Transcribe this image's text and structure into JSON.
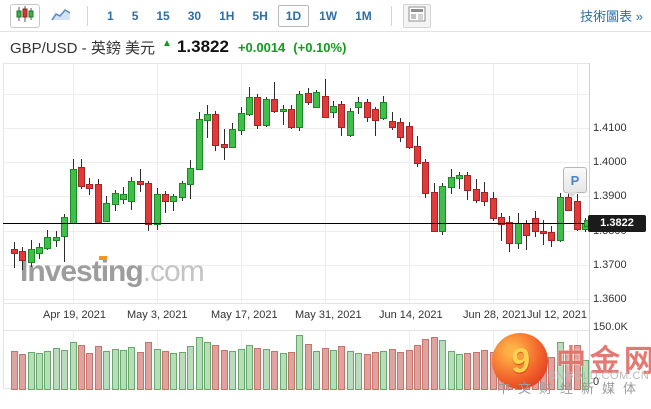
{
  "toolbar": {
    "chart_types": [
      {
        "id": "candlestick",
        "icon": "candlestick-icon",
        "selected": true
      },
      {
        "id": "line",
        "icon": "line-chart-icon",
        "selected": false
      }
    ],
    "timeframes": [
      "1",
      "5",
      "15",
      "30",
      "1H",
      "5H",
      "1D",
      "1W",
      "1M"
    ],
    "selected_timeframe": "1D",
    "news_button_icon": "news-icon",
    "tech_chart_link": "技術圖表 »"
  },
  "header": {
    "symbol": "GBP/USD",
    "separator": " - ",
    "name": "英鎊 美元",
    "up_arrow": "▲",
    "price": "1.3822",
    "change": "+0.0014",
    "change_pct": "(+0.10%)"
  },
  "colors": {
    "up_fill": "#3fbf4a",
    "up_border": "#1b8a24",
    "down_fill": "#e23a3a",
    "down_border": "#a32626",
    "wick": "#2b2b2b",
    "vol_up_fill": "#b9dcba",
    "vol_up_border": "#67a96a",
    "vol_down_fill": "#e0a29d",
    "vol_down_border": "#c4736d",
    "link_blue": "#2e6ea6",
    "change_green": "#0f9d1a",
    "price_tag_bg": "#1b1b1b"
  },
  "chart_data": {
    "type": "candlestick",
    "instrument": "GBP/USD",
    "interval": "1D",
    "ylim": [
      1.359,
      1.429
    ],
    "grid": true,
    "last_price": 1.3822,
    "last_price_label": "1.3822",
    "marker_flag": "P",
    "y_grid": [
      1.42,
      1.41,
      1.4,
      1.39,
      1.38,
      1.37,
      1.36
    ],
    "y_ticks": [
      {
        "value": 1.41,
        "label": "1.4100"
      },
      {
        "value": 1.4,
        "label": "1.4000"
      },
      {
        "value": 1.39,
        "label": "1.3900"
      },
      {
        "value": 1.38,
        "label": "1.3800"
      },
      {
        "value": 1.37,
        "label": "1.3700"
      },
      {
        "value": 1.36,
        "label": "1.3600"
      }
    ],
    "x_labels": [
      {
        "label": "Apr 19, 2021",
        "index": 7
      },
      {
        "label": "May 3, 2021",
        "index": 17
      },
      {
        "label": "May 17, 2021",
        "index": 27
      },
      {
        "label": "May 31, 2021",
        "index": 37
      },
      {
        "label": "Jun 14, 2021",
        "index": 47
      },
      {
        "label": "Jun 28, 2021",
        "index": 57
      },
      {
        "label": "Jul 12, 2021",
        "index": 67
      }
    ],
    "volume_axis": {
      "top_label": "150.0K",
      "zero_label": "0",
      "max_k": 150
    },
    "candles": [
      [
        "Apr 8",
        1.3746,
        1.3768,
        1.3692,
        1.3736,
        95
      ],
      [
        "Apr 9",
        1.374,
        1.3752,
        1.3686,
        1.3716,
        88
      ],
      [
        "Apr 12",
        1.371,
        1.3772,
        1.3694,
        1.3746,
        92
      ],
      [
        "Apr 13",
        1.3738,
        1.3765,
        1.3718,
        1.3752,
        90
      ],
      [
        "Apr 14",
        1.3752,
        1.3802,
        1.3744,
        1.3781,
        96
      ],
      [
        "Apr 15",
        1.3776,
        1.3798,
        1.3752,
        1.3782,
        104
      ],
      [
        "Apr 16",
        1.3787,
        1.3848,
        1.3708,
        1.384,
        98
      ],
      [
        "Apr 19",
        1.3826,
        1.4009,
        1.3822,
        1.398,
        120
      ],
      [
        "Apr 20",
        1.3987,
        1.401,
        1.3923,
        1.3932,
        112
      ],
      [
        "Apr 21",
        1.3936,
        1.3953,
        1.3905,
        1.3926,
        90
      ],
      [
        "Apr 22",
        1.3936,
        1.395,
        1.3818,
        1.3828,
        108
      ],
      [
        "Apr 23",
        1.383,
        1.3902,
        1.3824,
        1.388,
        95
      ],
      [
        "Apr 26",
        1.388,
        1.392,
        1.3858,
        1.391,
        102
      ],
      [
        "Apr 27",
        1.3896,
        1.3928,
        1.3878,
        1.3908,
        98
      ],
      [
        "Apr 28",
        1.389,
        1.3956,
        1.386,
        1.3946,
        105
      ],
      [
        "Apr 29",
        1.3946,
        1.398,
        1.3912,
        1.3938,
        92
      ],
      [
        "Apr 30",
        1.3938,
        1.3946,
        1.38,
        1.3822,
        118
      ],
      [
        "May 3",
        1.3822,
        1.3926,
        1.3802,
        1.3908,
        100
      ],
      [
        "May 4",
        1.3908,
        1.3916,
        1.3852,
        1.3888,
        96
      ],
      [
        "May 5",
        1.3888,
        1.3906,
        1.3856,
        1.39,
        90
      ],
      [
        "May 6",
        1.39,
        1.3946,
        1.3886,
        1.3938,
        94
      ],
      [
        "May 7",
        1.3938,
        1.4006,
        1.3892,
        1.3984,
        108
      ],
      [
        "May 10",
        1.3984,
        1.4148,
        1.398,
        1.4125,
        132
      ],
      [
        "May 11",
        1.4125,
        1.4166,
        1.4072,
        1.414,
        118
      ],
      [
        "May 12",
        1.414,
        1.415,
        1.4032,
        1.4054,
        110
      ],
      [
        "May 13",
        1.4054,
        1.4096,
        1.4006,
        1.4048,
        98
      ],
      [
        "May 14",
        1.4048,
        1.4116,
        1.4044,
        1.4098,
        96
      ],
      [
        "May 17",
        1.4098,
        1.4162,
        1.408,
        1.4145,
        102
      ],
      [
        "May 18",
        1.4145,
        1.422,
        1.4134,
        1.419,
        112
      ],
      [
        "May 19",
        1.419,
        1.42,
        1.4096,
        1.4112,
        104
      ],
      [
        "May 20",
        1.4112,
        1.419,
        1.4102,
        1.4186,
        100
      ],
      [
        "May 21",
        1.4186,
        1.4234,
        1.4144,
        1.4152,
        96
      ],
      [
        "May 24",
        1.4152,
        1.4166,
        1.411,
        1.4156,
        90
      ],
      [
        "May 25",
        1.4156,
        1.4166,
        1.4096,
        1.4106,
        94
      ],
      [
        "May 26",
        1.4106,
        1.4208,
        1.409,
        1.4199,
        138
      ],
      [
        "May 27",
        1.4201,
        1.4218,
        1.4166,
        1.418,
        115
      ],
      [
        "May 28",
        1.4165,
        1.4212,
        1.4158,
        1.4204,
        96
      ],
      [
        "May 31",
        1.4194,
        1.4243,
        1.413,
        1.4136,
        104
      ],
      [
        "Jun 1",
        1.4151,
        1.4178,
        1.4128,
        1.4165,
        98
      ],
      [
        "Jun 2",
        1.417,
        1.4178,
        1.4077,
        1.4106,
        108
      ],
      [
        "Jun 3",
        1.4082,
        1.4158,
        1.4075,
        1.4151,
        96
      ],
      [
        "Jun 4",
        1.4165,
        1.419,
        1.414,
        1.4175,
        90
      ],
      [
        "Jun 7",
        1.4175,
        1.4184,
        1.4118,
        1.4136,
        88
      ],
      [
        "Jun 8",
        1.4156,
        1.4162,
        1.4077,
        1.4126,
        92
      ],
      [
        "Jun 9",
        1.4131,
        1.4194,
        1.4122,
        1.4175,
        96
      ],
      [
        "Jun 10",
        1.4121,
        1.4148,
        1.4094,
        1.4106,
        100
      ],
      [
        "Jun 11",
        1.4117,
        1.413,
        1.4058,
        1.4077,
        94
      ],
      [
        "Jun 14",
        1.4106,
        1.4118,
        1.404,
        1.4048,
        98
      ],
      [
        "Jun 15",
        1.4048,
        1.4078,
        1.3985,
        1.4002,
        110
      ],
      [
        "Jun 16",
        1.4002,
        1.401,
        1.3895,
        1.3912,
        126
      ],
      [
        "Jun 17",
        1.3913,
        1.3938,
        1.3795,
        1.3802,
        132
      ],
      [
        "Jun 18",
        1.3802,
        1.3938,
        1.3787,
        1.393,
        124
      ],
      [
        "Jun 21",
        1.393,
        1.398,
        1.3908,
        1.3956,
        96
      ],
      [
        "Jun 22",
        1.3956,
        1.397,
        1.3922,
        1.3964,
        88
      ],
      [
        "Jun 23",
        1.3964,
        1.3972,
        1.389,
        1.3922,
        90
      ],
      [
        "Jun 24",
        1.3922,
        1.395,
        1.388,
        1.3892,
        94
      ],
      [
        "Jun 25",
        1.3912,
        1.3942,
        1.3872,
        1.389,
        98
      ],
      [
        "Jun 28",
        1.3895,
        1.3913,
        1.3828,
        1.384,
        92
      ],
      [
        "Jun 29",
        1.384,
        1.3852,
        1.377,
        1.3822,
        86
      ],
      [
        "Jun 30",
        1.3825,
        1.3843,
        1.3738,
        1.3768,
        96
      ],
      [
        "Jul 1",
        1.3768,
        1.3852,
        1.3746,
        1.3822,
        104
      ],
      [
        "Jul 2",
        1.3822,
        1.3832,
        1.3742,
        1.379,
        90
      ],
      [
        "Jul 5",
        1.3836,
        1.3858,
        1.378,
        1.3802,
        88
      ],
      [
        "Jul 6",
        1.38,
        1.3832,
        1.3758,
        1.3796,
        84
      ],
      [
        "Jul 7",
        1.3796,
        1.3812,
        1.3752,
        1.3774,
        80
      ],
      [
        "Jul 8",
        1.3774,
        1.391,
        1.3766,
        1.3898,
        118
      ],
      [
        "Jul 9",
        1.3898,
        1.3912,
        1.3856,
        1.3862,
        96
      ],
      [
        "Jul 12",
        1.3888,
        1.3906,
        1.38,
        1.3808,
        110
      ],
      [
        "Jul 13",
        1.3808,
        1.3836,
        1.3796,
        1.3822,
        72
      ]
    ]
  },
  "watermarks": {
    "investing": {
      "name": "Investing",
      "tld": ".com"
    },
    "cngold": {
      "swirl": "9",
      "name": "中金网",
      "domain": "CNGOLD.COM.CN",
      "tagline": "中文财经新媒体"
    }
  }
}
